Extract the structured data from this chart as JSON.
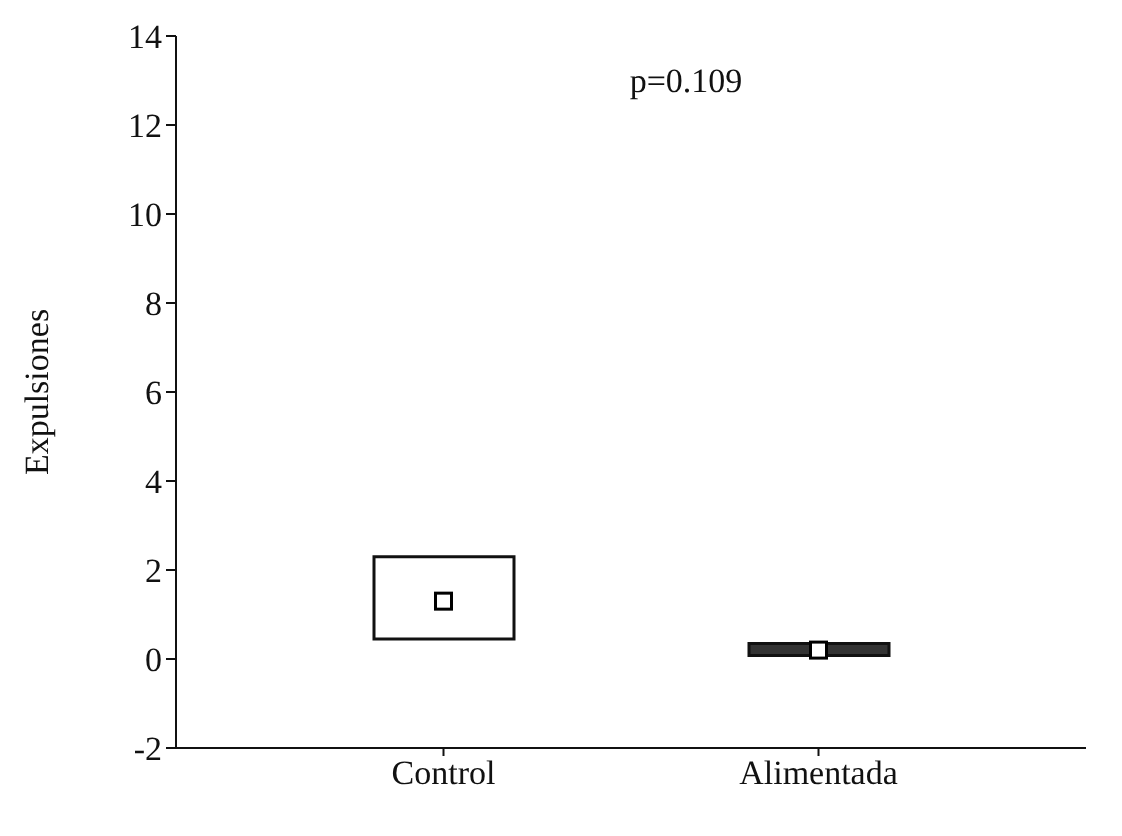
{
  "chart_data": {
    "type": "bar",
    "ylabel": "Expulsiones",
    "categories": [
      "Control",
      "Alimentada"
    ],
    "values": [
      1.85,
      0.27
    ],
    "base": [
      0.45,
      0.08
    ],
    "colors": [
      "#ffffff",
      "#333333"
    ],
    "series": [
      {
        "type": "scatter",
        "values": [
          1.3,
          0.2
        ],
        "color": "#ffffff"
      }
    ],
    "marker": "square",
    "ylim": [
      -2,
      14
    ],
    "yticks": [
      -2,
      0,
      2,
      4,
      6,
      8,
      10,
      12,
      14
    ],
    "grid": false,
    "legend": false,
    "annotations": [
      "p=0.109"
    ]
  }
}
